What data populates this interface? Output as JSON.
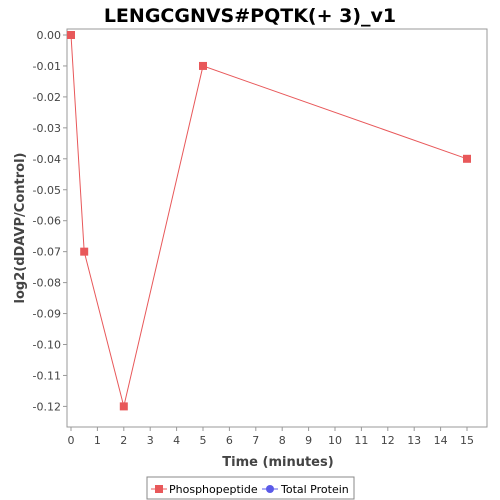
{
  "chart_data": {
    "type": "line",
    "title": "LENGCGNVS#PQTK(+ 3)_v1",
    "xlabel": "Time (minutes)",
    "ylabel": "log2(dDAVP/Control)",
    "xlim": [
      0,
      16
    ],
    "ylim": [
      -0.127,
      0.0
    ],
    "x_ticks": [
      0,
      1,
      2,
      3,
      4,
      5,
      6,
      7,
      8,
      9,
      10,
      11,
      12,
      13,
      14,
      15
    ],
    "x_tick_labels": [
      "0",
      "1",
      "2",
      "3",
      "4",
      "5",
      "6",
      "7",
      "8",
      "9",
      "10",
      "11",
      "12",
      "13",
      "14",
      "15"
    ],
    "y_ticks": [
      0.0,
      -0.01,
      -0.02,
      -0.03,
      -0.04,
      -0.05,
      -0.06,
      -0.07,
      -0.08,
      -0.09,
      -0.1,
      -0.11,
      -0.12
    ],
    "y_tick_labels": [
      "0.00",
      "-0.01",
      "-0.02",
      "-0.03",
      "-0.04",
      "-0.05",
      "-0.06",
      "-0.07",
      "-0.08",
      "-0.09",
      "-0.10",
      "-0.11",
      "-0.12"
    ],
    "grid": false,
    "legend_position": "bottom",
    "series": [
      {
        "name": "Phosphopeptide",
        "color": "#e8585a",
        "marker": "square",
        "x": [
          0,
          0.5,
          2,
          5,
          15
        ],
        "y": [
          0.0,
          -0.07,
          -0.12,
          -0.01,
          -0.04
        ]
      },
      {
        "name": "Total Protein",
        "color": "#5a5ae8",
        "marker": "circle",
        "x": [],
        "y": []
      }
    ]
  }
}
